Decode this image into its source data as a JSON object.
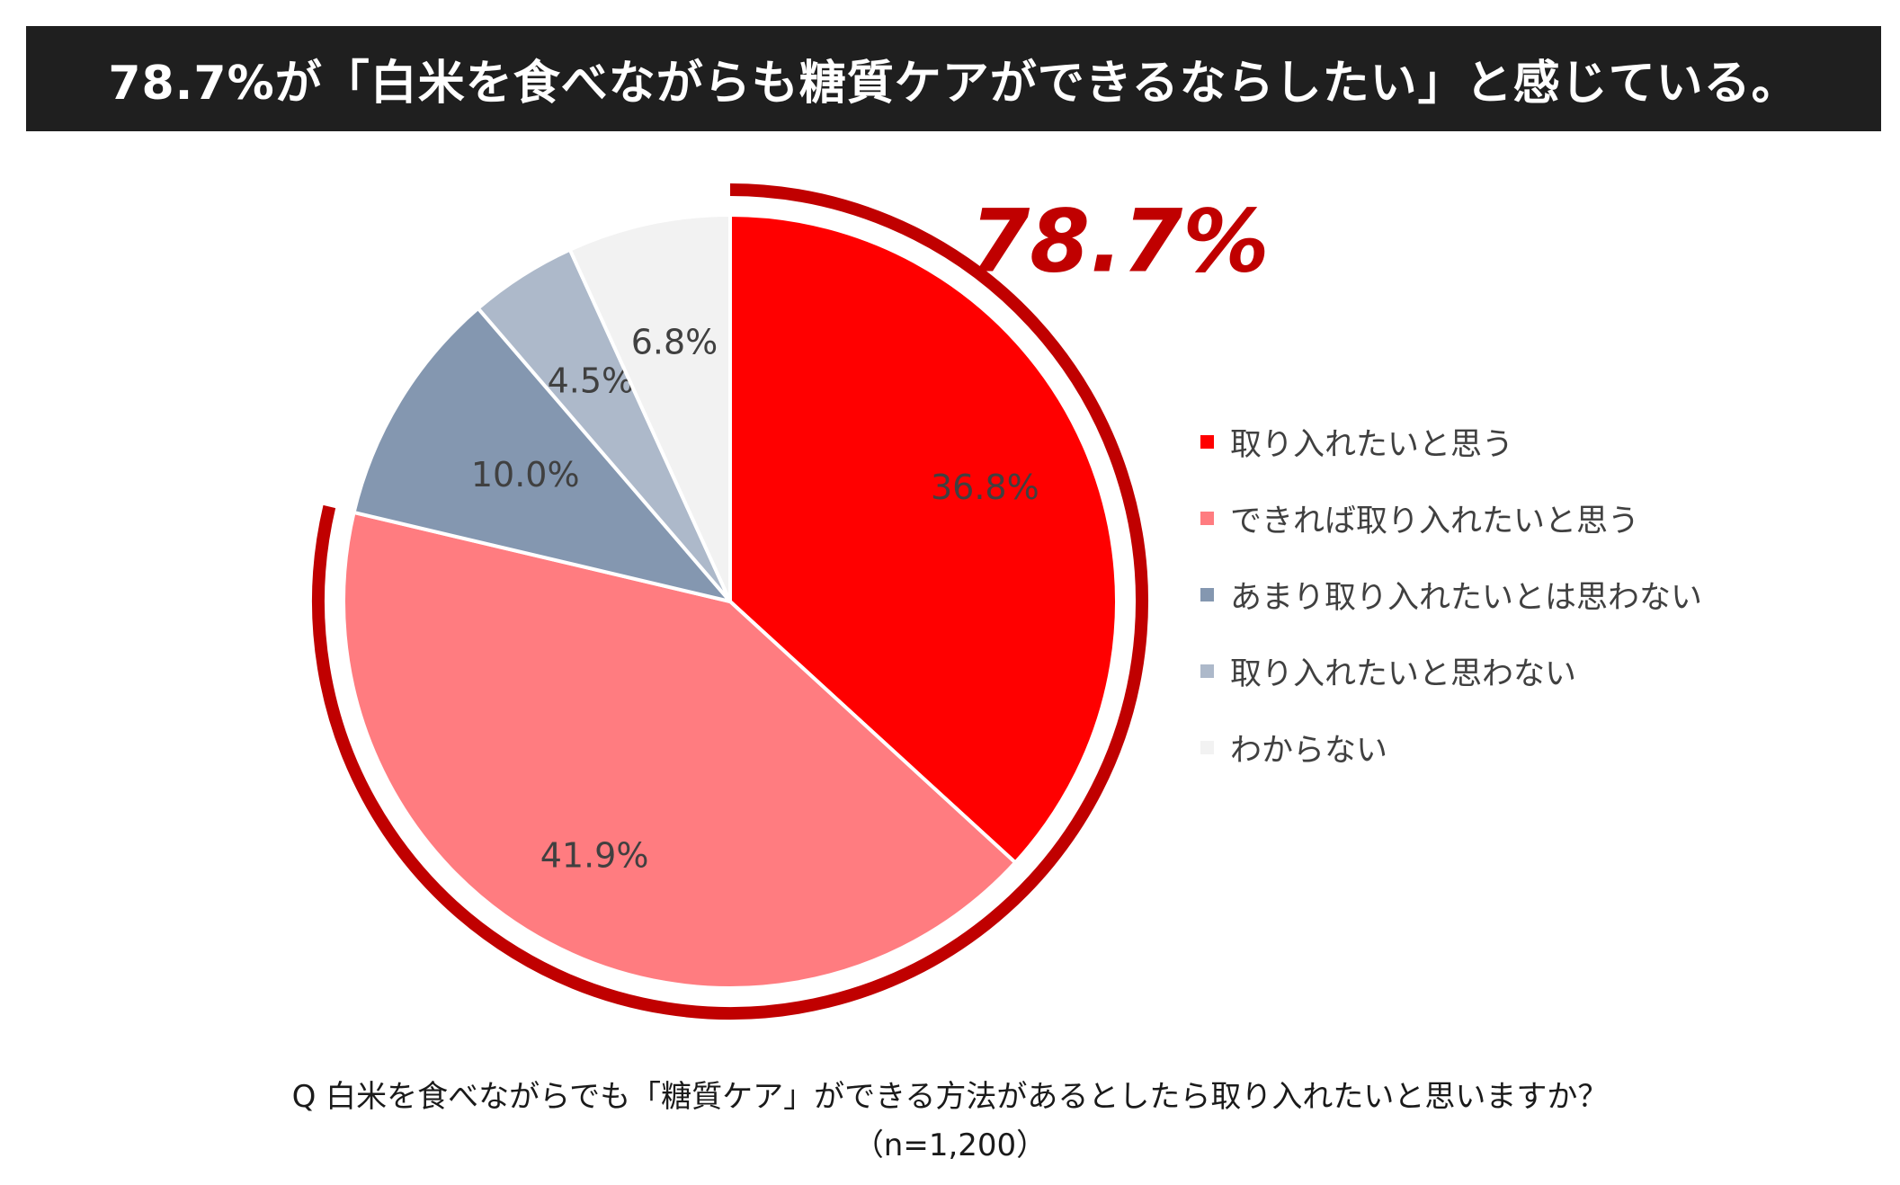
{
  "title": "78.7%が「白米を食べながらも糖質ケアができるならしたい」と感じている。",
  "chart_data": {
    "type": "pie",
    "categories": [
      "取り入れたいと思う",
      "できれば取り入れたいと思う",
      "あまり取り入れたいとは思わない",
      "取り入れたいと思わない",
      "わからない"
    ],
    "values": [
      36.8,
      41.9,
      10.0,
      4.5,
      6.8
    ],
    "labels": [
      "36.8%",
      "41.9%",
      "10.0%",
      "4.5%",
      "6.8%"
    ],
    "colors": [
      "#ff0000",
      "#ff7c80",
      "#8497b0",
      "#adb9ca",
      "#f2f2f2"
    ],
    "start": "12 o'clock, clockwise",
    "highlight": {
      "label": "78.7%",
      "color": "#c00000",
      "covers": [
        "取り入れたいと思う",
        "できれば取り入れたいと思う"
      ]
    },
    "legend_position": "right"
  },
  "question": "Q  白米を食べながらでも「糖質ケア」ができる方法があるとしたら取り入れたいと思いますか？",
  "sample": "（n=1,200）"
}
